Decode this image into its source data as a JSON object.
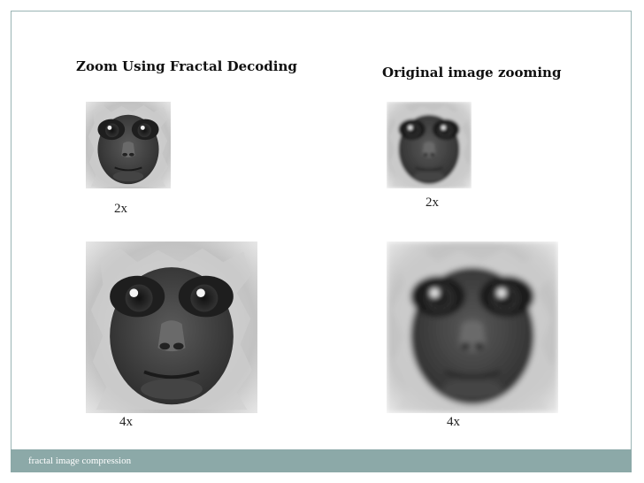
{
  "left_column": {
    "title": "Zoom Using Fractal Decoding",
    "small_label": "2x",
    "large_label": "4x"
  },
  "right_column": {
    "title": "Original image zooming",
    "small_label": "2x",
    "large_label": "4x"
  },
  "footer": {
    "text": "fractal image compression"
  }
}
